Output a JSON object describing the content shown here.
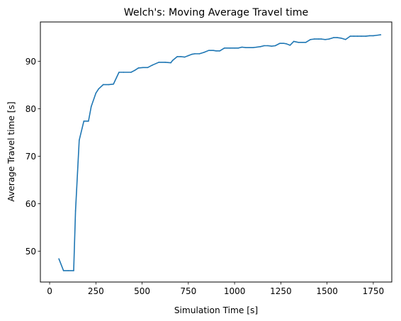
{
  "chart_data": {
    "type": "line",
    "title": "Welch's: Moving Average Travel time",
    "xlabel": "Simulation Time [s]",
    "ylabel": "Average Travel time [s]",
    "xlim": [
      -50,
      1850
    ],
    "ylim": [
      43.5,
      98.3
    ],
    "xticks": [
      0,
      250,
      500,
      750,
      1000,
      1250,
      1500,
      1750
    ],
    "yticks": [
      50,
      60,
      70,
      80,
      90
    ],
    "grid": false,
    "legend": "none",
    "colors": {
      "line": "#1f77b4",
      "axes": "#000000",
      "background": "#ffffff"
    },
    "series": [
      {
        "x": [
          50,
          75,
          100,
          130,
          140,
          160,
          185,
          210,
          225,
          250,
          265,
          290,
          320,
          345,
          375,
          400,
          440,
          460,
          480,
          505,
          530,
          555,
          590,
          625,
          655,
          665,
          690,
          710,
          730,
          750,
          770,
          785,
          810,
          835,
          860,
          885,
          900,
          920,
          945,
          975,
          1000,
          1020,
          1040,
          1060,
          1080,
          1100,
          1120,
          1140,
          1160,
          1180,
          1200,
          1220,
          1245,
          1265,
          1280,
          1300,
          1320,
          1345,
          1365,
          1385,
          1410,
          1430,
          1455,
          1470,
          1490,
          1510,
          1535,
          1555,
          1575,
          1600,
          1625,
          1645,
          1665,
          1685,
          1710,
          1730,
          1750,
          1770,
          1790
        ],
        "values": [
          48.4,
          45.9,
          45.9,
          45.9,
          58.5,
          73.4,
          77.4,
          77.4,
          80.5,
          83.3,
          84.2,
          85.1,
          85.1,
          85.2,
          87.7,
          87.7,
          87.7,
          88.1,
          88.6,
          88.7,
          88.7,
          89.2,
          89.8,
          89.8,
          89.7,
          90.2,
          91.0,
          91.0,
          90.9,
          91.2,
          91.5,
          91.6,
          91.6,
          91.9,
          92.3,
          92.3,
          92.2,
          92.2,
          92.8,
          92.8,
          92.8,
          92.8,
          93.0,
          92.9,
          92.9,
          92.9,
          93.0,
          93.1,
          93.3,
          93.3,
          93.2,
          93.3,
          93.8,
          93.8,
          93.7,
          93.4,
          94.2,
          94.0,
          94.0,
          94.0,
          94.6,
          94.7,
          94.7,
          94.7,
          94.6,
          94.7,
          95.0,
          95.0,
          94.9,
          94.6,
          95.3,
          95.3,
          95.3,
          95.3,
          95.3,
          95.4,
          95.4,
          95.5,
          95.6
        ]
      }
    ]
  }
}
